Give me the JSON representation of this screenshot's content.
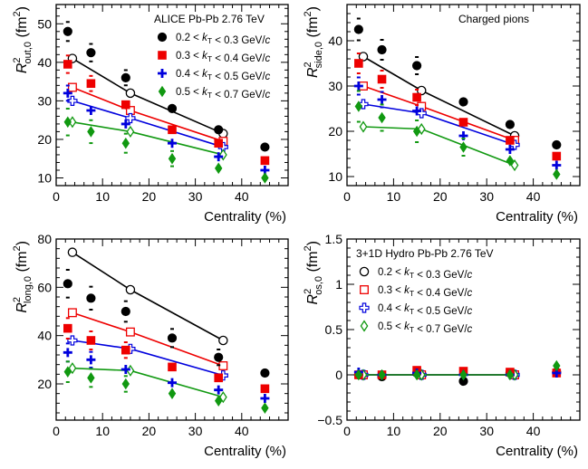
{
  "chart_data": [
    {
      "type": "scatter",
      "panel": "top-left",
      "ylabel_base": "R",
      "ylabel_sup": "2",
      "ylabel_sub": "out,0",
      "ylabel_unit": " (fm",
      "ylabel_unit_sup": "2",
      "ylabel_close": ")",
      "xlabel": "Centrality (%)",
      "xlim": [
        0,
        50
      ],
      "ylim": [
        8,
        55
      ],
      "xticks": [
        0,
        10,
        20,
        30,
        40
      ],
      "yticks": [
        10,
        20,
        30,
        40,
        50
      ],
      "legend_title": "ALICE Pb-Pb 2.76 TeV",
      "legend_placement": "top-right",
      "data_series": [
        {
          "label": "0.2 < k_T < 0.3 GeV/c",
          "color": "#000000",
          "marker": "circle",
          "x": [
            2.5,
            7.5,
            15,
            25,
            35,
            45
          ],
          "y": [
            48,
            42.5,
            36,
            28,
            22.5,
            18
          ],
          "syst": [
            2,
            1.8,
            1.5,
            1.2,
            1,
            0.8
          ]
        },
        {
          "label": "0.3 < k_T < 0.4 GeV/c",
          "color": "#ee0000",
          "marker": "square",
          "x": [
            2.5,
            7.5,
            15,
            25,
            35,
            45
          ],
          "y": [
            39.5,
            34.5,
            29,
            22.5,
            19,
            14.5
          ],
          "syst": [
            1.8,
            1.5,
            1.3,
            1.1,
            0.9,
            0.8
          ]
        },
        {
          "label": "0.4 < k_T < 0.5 GeV/c",
          "color": "#0000dd",
          "marker": "cross",
          "x": [
            2.5,
            7.5,
            15,
            25,
            35,
            45
          ],
          "y": [
            32,
            27.5,
            24,
            19,
            15.5,
            12
          ],
          "syst": [
            1.5,
            1.3,
            1.2,
            1,
            0.9,
            0.8
          ]
        },
        {
          "label": "0.5 < k_T < 0.7 GeV/c",
          "color": "#119911",
          "marker": "diamond",
          "x": [
            2.5,
            7.5,
            15,
            25,
            35,
            45
          ],
          "y": [
            24.5,
            22,
            19,
            15,
            12.5,
            10
          ],
          "syst": [
            3,
            2.5,
            2,
            1.5,
            1.2,
            1
          ]
        }
      ],
      "hydro_series": [
        {
          "color": "#000000",
          "marker": "open-circle",
          "x": [
            3.5,
            16,
            36
          ],
          "y": [
            41,
            32,
            21.5
          ]
        },
        {
          "color": "#ee0000",
          "marker": "open-square",
          "x": [
            3.5,
            16,
            36
          ],
          "y": [
            33.5,
            27.5,
            19.5
          ]
        },
        {
          "color": "#0000dd",
          "marker": "open-cross",
          "x": [
            3.5,
            16,
            36
          ],
          "y": [
            30,
            25.5,
            18
          ]
        },
        {
          "color": "#119911",
          "marker": "open-diamond",
          "x": [
            3.5,
            16,
            36
          ],
          "y": [
            24.5,
            22,
            16
          ]
        }
      ]
    },
    {
      "type": "scatter",
      "panel": "top-right",
      "ylabel_base": "R",
      "ylabel_sup": "2",
      "ylabel_sub": "side,0",
      "ylabel_unit": " (fm",
      "ylabel_unit_sup": "2",
      "ylabel_close": ")",
      "xlabel": "Centrality (%)",
      "xlim": [
        0,
        50
      ],
      "ylim": [
        8,
        48
      ],
      "xticks": [
        0,
        10,
        20,
        30,
        40
      ],
      "yticks": [
        10,
        20,
        30,
        40
      ],
      "legend_title": "Charged pions",
      "legend_placement": "top-right",
      "data_series": [
        {
          "color": "#000000",
          "marker": "circle",
          "x": [
            2.5,
            7.5,
            15,
            25,
            35,
            45
          ],
          "y": [
            42.5,
            38,
            34.5,
            26.5,
            21.5,
            17
          ],
          "syst": [
            2,
            1.8,
            1.5,
            1.2,
            1,
            0.8
          ]
        },
        {
          "color": "#ee0000",
          "marker": "square",
          "x": [
            2.5,
            7.5,
            15,
            25,
            35,
            45
          ],
          "y": [
            35,
            31.5,
            27.5,
            22,
            18,
            14.5
          ],
          "syst": [
            1.8,
            1.5,
            1.3,
            1.1,
            0.9,
            0.8
          ]
        },
        {
          "color": "#0000dd",
          "marker": "cross",
          "x": [
            2.5,
            7.5,
            15,
            25,
            35,
            45
          ],
          "y": [
            30,
            27,
            24.5,
            19,
            16,
            12.5
          ],
          "syst": [
            1.5,
            1.3,
            1.2,
            1,
            0.9,
            0.8
          ]
        },
        {
          "color": "#119911",
          "marker": "diamond",
          "x": [
            2.5,
            7.5,
            15,
            25,
            35,
            45
          ],
          "y": [
            25.5,
            23,
            20,
            16.5,
            13.5,
            10.5
          ],
          "syst": [
            3,
            2.5,
            2,
            1.5,
            1.2,
            1
          ]
        }
      ],
      "hydro_series": [
        {
          "color": "#000000",
          "marker": "open-circle",
          "x": [
            3.5,
            16,
            36
          ],
          "y": [
            36.5,
            29,
            19
          ]
        },
        {
          "color": "#ee0000",
          "marker": "open-square",
          "x": [
            3.5,
            16,
            36
          ],
          "y": [
            30,
            25.5,
            18
          ]
        },
        {
          "color": "#0000dd",
          "marker": "open-cross",
          "x": [
            3.5,
            16,
            36
          ],
          "y": [
            26,
            24,
            17
          ]
        },
        {
          "color": "#119911",
          "marker": "open-diamond",
          "x": [
            3.5,
            16,
            36
          ],
          "y": [
            21,
            20.5,
            12.5
          ]
        }
      ]
    },
    {
      "type": "scatter",
      "panel": "bottom-left",
      "ylabel_base": "R",
      "ylabel_sup": "2",
      "ylabel_sub": "long,0",
      "ylabel_unit": " (fm",
      "ylabel_unit_sup": "2",
      "ylabel_close": ")",
      "xlabel": "Centrality (%)",
      "xlim": [
        0,
        50
      ],
      "ylim": [
        5,
        80
      ],
      "xticks": [
        0,
        10,
        20,
        30,
        40
      ],
      "yticks": [
        20,
        40,
        60,
        80
      ],
      "data_series": [
        {
          "color": "#000000",
          "marker": "circle",
          "x": [
            2.5,
            7.5,
            15,
            25,
            35,
            45
          ],
          "y": [
            61.5,
            55.5,
            50,
            39,
            31,
            24.5
          ],
          "syst": [
            5,
            4,
            3.5,
            3,
            2.5,
            2
          ]
        },
        {
          "color": "#ee0000",
          "marker": "square",
          "x": [
            2.5,
            7.5,
            15,
            25,
            35,
            45
          ],
          "y": [
            43,
            38,
            34,
            27,
            22.5,
            18
          ],
          "syst": [
            3.5,
            3,
            2.5,
            2,
            1.8,
            1.5
          ]
        },
        {
          "color": "#0000dd",
          "marker": "cross",
          "x": [
            2.5,
            7.5,
            15,
            25,
            35,
            45
          ],
          "y": [
            33,
            30,
            26,
            20.5,
            17.5,
            14
          ],
          "syst": [
            3,
            2.5,
            2,
            1.8,
            1.5,
            1.2
          ]
        },
        {
          "color": "#119911",
          "marker": "diamond",
          "x": [
            2.5,
            7.5,
            15,
            25,
            35,
            45
          ],
          "y": [
            25,
            22.5,
            20,
            16,
            13,
            10
          ],
          "syst": [
            3.5,
            3,
            2.5,
            2,
            1.8,
            1.5
          ]
        }
      ],
      "hydro_series": [
        {
          "color": "#000000",
          "marker": "open-circle",
          "x": [
            3.5,
            16,
            36
          ],
          "y": [
            74.5,
            59,
            38
          ]
        },
        {
          "color": "#ee0000",
          "marker": "open-square",
          "x": [
            3.5,
            16,
            36
          ],
          "y": [
            49.5,
            41.5,
            27.5
          ]
        },
        {
          "color": "#0000dd",
          "marker": "open-cross",
          "x": [
            3.5,
            16,
            36
          ],
          "y": [
            38,
            34.5,
            23.5
          ]
        },
        {
          "color": "#119911",
          "marker": "open-diamond",
          "x": [
            3.5,
            16,
            36
          ],
          "y": [
            26.5,
            25.5,
            14.5
          ]
        }
      ]
    },
    {
      "type": "scatter",
      "panel": "bottom-right",
      "ylabel_base": "R",
      "ylabel_sup": "2",
      "ylabel_sub": "os,0",
      "ylabel_unit": " (fm",
      "ylabel_unit_sup": "2",
      "ylabel_close": ")",
      "xlabel": "Centrality (%)",
      "xlim": [
        0,
        50
      ],
      "ylim": [
        -0.5,
        1.5
      ],
      "xticks": [
        0,
        10,
        20,
        30,
        40
      ],
      "yticks": [
        -0.5,
        0,
        0.5,
        1,
        1.5
      ],
      "ytick_labels": [
        "−0.5",
        "0",
        "0.5",
        "1",
        "1.5"
      ],
      "legend_title": "3+1D Hydro Pb-Pb 2.76 TeV",
      "legend_placement": "top-right",
      "data_series": [
        {
          "color": "#000000",
          "marker": "circle",
          "x": [
            2.5,
            7.5,
            15,
            25,
            35,
            45
          ],
          "y": [
            0.0,
            -0.02,
            0.02,
            -0.07,
            0.02,
            0.03
          ],
          "syst": [
            0.02,
            0.02,
            0.02,
            0.02,
            0.02,
            0.02
          ]
        },
        {
          "color": "#ee0000",
          "marker": "square",
          "x": [
            2.5,
            7.5,
            15,
            25,
            35,
            45
          ],
          "y": [
            0.0,
            0.0,
            0.05,
            0.04,
            0.03,
            0.02
          ],
          "syst": [
            0.02,
            0.02,
            0.02,
            0.02,
            0.02,
            0.02
          ]
        },
        {
          "color": "#0000dd",
          "marker": "cross",
          "x": [
            2.5,
            7.5,
            15,
            25,
            35,
            45
          ],
          "y": [
            0.03,
            0.0,
            0.02,
            0.0,
            0.0,
            0.02
          ],
          "syst": [
            0.02,
            0.02,
            0.02,
            0.02,
            0.02,
            0.02
          ]
        },
        {
          "color": "#119911",
          "marker": "diamond",
          "x": [
            2.5,
            7.5,
            15,
            25,
            35,
            45
          ],
          "y": [
            0.0,
            0.0,
            0.0,
            0.0,
            0.0,
            0.1
          ],
          "syst": [
            0.02,
            0.02,
            0.02,
            0.02,
            0.02,
            0.02
          ]
        }
      ],
      "hydro_series": [
        {
          "label": "0.2 < k_T < 0.3 GeV/c",
          "color": "#000000",
          "marker": "open-circle",
          "x": [
            3.5,
            16,
            36
          ],
          "y": [
            0,
            0,
            0
          ]
        },
        {
          "label": "0.3 < k_T < 0.4 GeV/c",
          "color": "#ee0000",
          "marker": "open-square",
          "x": [
            3.5,
            16,
            36
          ],
          "y": [
            0,
            0,
            0
          ]
        },
        {
          "label": "0.4 < k_T < 0.5 GeV/c",
          "color": "#0000dd",
          "marker": "open-cross",
          "x": [
            3.5,
            16,
            36
          ],
          "y": [
            0,
            0,
            0
          ]
        },
        {
          "label": "0.5 < k_T < 0.7 GeV/c",
          "color": "#119911",
          "marker": "open-diamond",
          "x": [
            3.5,
            16,
            36
          ],
          "y": [
            0,
            0,
            0
          ]
        }
      ]
    }
  ]
}
